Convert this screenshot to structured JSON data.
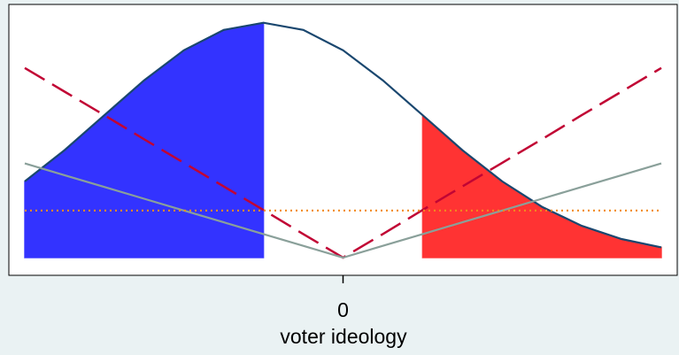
{
  "chart_data": {
    "type": "line",
    "xlabel": "voter ideology",
    "x": [
      -2,
      -1.75,
      -1.5,
      -1.25,
      -1,
      -0.75,
      -0.5,
      -0.25,
      0,
      0.25,
      0.5,
      0.75,
      1,
      1.25,
      1.5,
      1.75,
      2
    ],
    "series": [
      {
        "style": "area",
        "color": "#3333ff",
        "values": [
          0.1295,
          0.1826,
          0.242,
          0.3011,
          0.3521,
          0.3867,
          0.3989,
          null,
          null,
          null,
          null,
          null,
          null,
          null,
          null,
          null,
          null
        ]
      },
      {
        "style": "area",
        "color": "#ff3333",
        "values": [
          null,
          null,
          null,
          null,
          null,
          null,
          null,
          null,
          null,
          null,
          0.242,
          0.1826,
          0.1295,
          0.0863,
          0.054,
          0.0317,
          0.0175
        ]
      },
      {
        "style": "solid",
        "color": "#1a476f",
        "values": [
          0.1295,
          0.1826,
          0.242,
          0.3011,
          0.3521,
          0.3867,
          0.3989,
          0.3867,
          0.3521,
          0.3011,
          0.242,
          0.1826,
          0.1295,
          0.0863,
          0.054,
          0.0317,
          0.0175
        ]
      },
      {
        "style": "dash",
        "color": "#c10534",
        "values": [
          0.322,
          0.282,
          0.242,
          0.201,
          0.161,
          0.121,
          0.081,
          0.04,
          0,
          0.04,
          0.081,
          0.121,
          0.161,
          0.201,
          0.242,
          0.282,
          0.322
        ]
      },
      {
        "style": "solid",
        "color": "#8aa09a",
        "values": [
          0.16,
          0.14,
          0.12,
          0.1,
          0.08,
          0.06,
          0.04,
          0.02,
          0,
          0.02,
          0.04,
          0.06,
          0.08,
          0.1,
          0.12,
          0.14,
          0.16
        ]
      },
      {
        "style": "dot",
        "color": "#f28a1e",
        "values": [
          0.08,
          0.08,
          0.08,
          0.08,
          0.08,
          0.08,
          0.08,
          0.08,
          0.08,
          0.08,
          0.08,
          0.08,
          0.08,
          0.08,
          0.08,
          0.08,
          0.08
        ]
      }
    ],
    "xlim": [
      -2.1,
      2.1
    ],
    "xticks": [
      0
    ],
    "ylim": [
      -0.03,
      0.43
    ]
  }
}
